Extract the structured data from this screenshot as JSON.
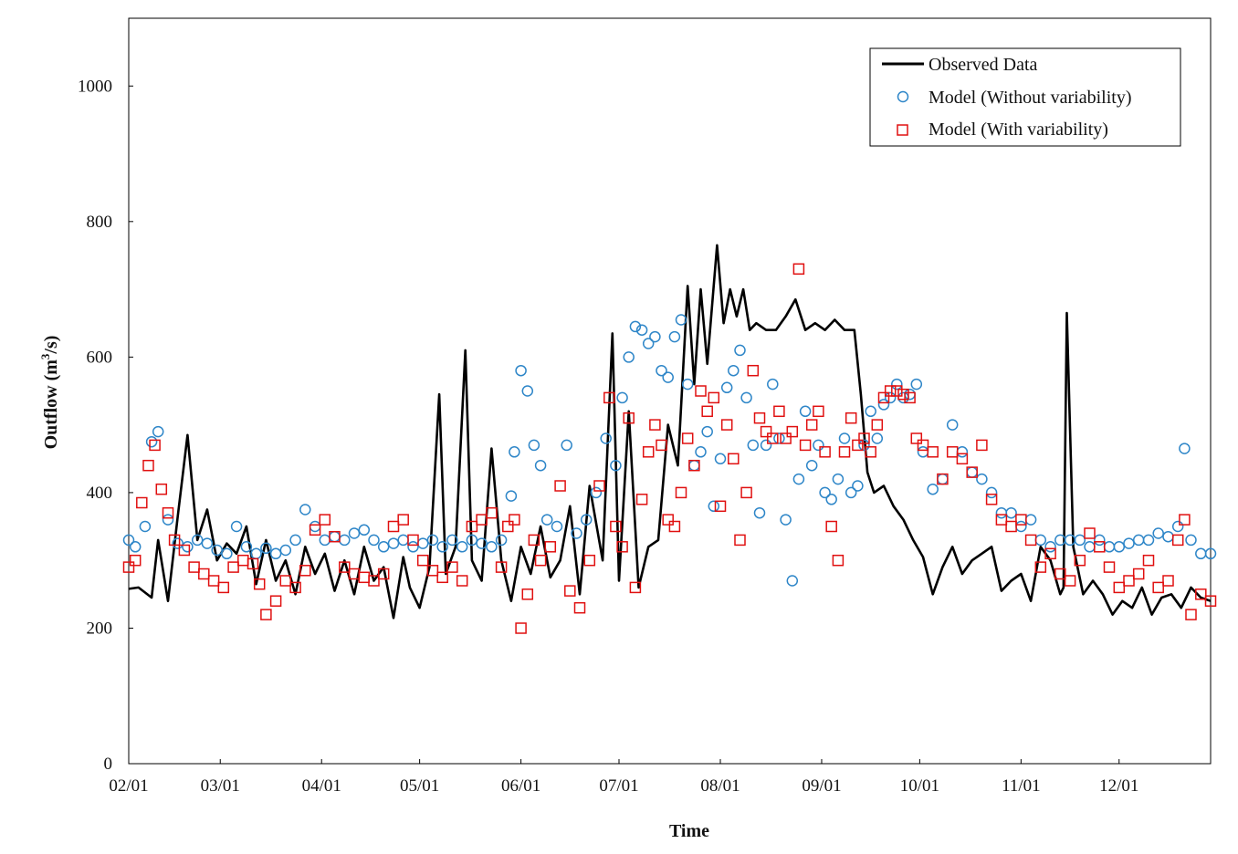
{
  "chart_data": {
    "type": "line",
    "xlabel": "Time",
    "ylabel": "Outflow (m³/s)",
    "ylabel_parts": {
      "main": "Outflow (m",
      "sup": "3",
      "tail": "/s)"
    },
    "ylim": [
      0,
      1100
    ],
    "yticks": [
      0,
      200,
      400,
      600,
      800,
      1000
    ],
    "xlim": [
      "02/01",
      "12/29"
    ],
    "xticks": [
      "02/01",
      "03/01",
      "04/01",
      "05/01",
      "06/01",
      "07/01",
      "08/01",
      "09/01",
      "10/01",
      "11/01",
      "12/01"
    ],
    "grid": false,
    "legend_position": "top-right",
    "colors": {
      "observed": "#000000",
      "without": "#2e86c8",
      "with": "#e01010"
    },
    "series": [
      {
        "name": "Observed Data",
        "style": "line",
        "x": [
          "02/01",
          "02/04",
          "02/08",
          "02/10",
          "02/13",
          "02/16",
          "02/19",
          "02/22",
          "02/25",
          "02/28",
          "03/03",
          "03/06",
          "03/09",
          "03/12",
          "03/15",
          "03/18",
          "03/21",
          "03/24",
          "03/27",
          "03/30",
          "04/02",
          "04/05",
          "04/08",
          "04/11",
          "04/14",
          "04/17",
          "04/20",
          "04/23",
          "04/26",
          "04/28",
          "05/01",
          "05/04",
          "05/07",
          "05/09",
          "05/12",
          "05/15",
          "05/17",
          "05/20",
          "05/23",
          "05/26",
          "05/29",
          "06/01",
          "06/04",
          "06/07",
          "06/10",
          "06/13",
          "06/16",
          "06/19",
          "06/22",
          "06/26",
          "06/29",
          "07/01",
          "07/04",
          "07/07",
          "07/10",
          "07/13",
          "07/16",
          "07/19",
          "07/22",
          "07/24",
          "07/26",
          "07/28",
          "07/31",
          "08/02",
          "08/04",
          "08/06",
          "08/08",
          "08/10",
          "08/12",
          "08/15",
          "08/18",
          "08/21",
          "08/24",
          "08/27",
          "08/30",
          "09/02",
          "09/05",
          "09/08",
          "09/11",
          "09/13",
          "09/15",
          "09/17",
          "09/20",
          "09/23",
          "09/26",
          "09/29",
          "10/02",
          "10/05",
          "10/08",
          "10/11",
          "10/14",
          "10/17",
          "10/20",
          "10/23",
          "10/26",
          "10/29",
          "11/01",
          "11/04",
          "11/07",
          "11/10",
          "11/13",
          "11/14",
          "11/15",
          "11/17",
          "11/20",
          "11/23",
          "11/26",
          "11/29",
          "12/02",
          "12/05",
          "12/08",
          "12/11",
          "12/14",
          "12/17",
          "12/20",
          "12/23",
          "12/26",
          "12/29"
        ],
        "y": [
          258,
          260,
          245,
          330,
          240,
          365,
          485,
          330,
          375,
          300,
          325,
          310,
          350,
          265,
          330,
          270,
          300,
          250,
          320,
          280,
          310,
          255,
          300,
          250,
          320,
          270,
          290,
          215,
          305,
          260,
          230,
          290,
          545,
          280,
          320,
          610,
          300,
          270,
          465,
          300,
          240,
          320,
          280,
          350,
          275,
          300,
          380,
          250,
          410,
          300,
          635,
          270,
          520,
          260,
          320,
          330,
          500,
          440,
          705,
          560,
          700,
          590,
          765,
          650,
          700,
          660,
          700,
          640,
          650,
          640,
          640,
          660,
          685,
          640,
          650,
          640,
          655,
          640,
          640,
          545,
          430,
          400,
          410,
          380,
          360,
          330,
          305,
          250,
          290,
          320,
          280,
          300,
          310,
          320,
          255,
          270,
          280,
          240,
          320,
          300,
          250,
          260,
          665,
          320,
          250,
          270,
          250,
          220,
          240,
          230,
          260,
          220,
          245,
          250,
          230,
          260,
          245,
          240
        ]
      },
      {
        "name": "Model (Without variability)",
        "style": "circle",
        "x": [
          "02/01",
          "02/03",
          "02/06",
          "02/08",
          "02/10",
          "02/13",
          "02/16",
          "02/19",
          "02/22",
          "02/25",
          "02/28",
          "03/03",
          "03/06",
          "03/09",
          "03/12",
          "03/15",
          "03/18",
          "03/21",
          "03/24",
          "03/27",
          "03/30",
          "04/02",
          "04/05",
          "04/08",
          "04/11",
          "04/14",
          "04/17",
          "04/20",
          "04/23",
          "04/26",
          "04/29",
          "05/02",
          "05/05",
          "05/08",
          "05/11",
          "05/14",
          "05/17",
          "05/20",
          "05/23",
          "05/26",
          "05/29",
          "05/30",
          "06/01",
          "06/03",
          "06/05",
          "06/07",
          "06/09",
          "06/12",
          "06/15",
          "06/18",
          "06/21",
          "06/24",
          "06/27",
          "06/30",
          "07/02",
          "07/04",
          "07/06",
          "07/08",
          "07/10",
          "07/12",
          "07/14",
          "07/16",
          "07/18",
          "07/20",
          "07/22",
          "07/24",
          "07/26",
          "07/28",
          "07/30",
          "08/01",
          "08/03",
          "08/05",
          "08/07",
          "08/09",
          "08/11",
          "08/13",
          "08/15",
          "08/17",
          "08/19",
          "08/21",
          "08/23",
          "08/25",
          "08/27",
          "08/29",
          "08/31",
          "09/02",
          "09/04",
          "09/06",
          "09/08",
          "09/10",
          "09/12",
          "09/14",
          "09/16",
          "09/18",
          "09/20",
          "09/22",
          "09/24",
          "09/26",
          "09/28",
          "09/30",
          "10/02",
          "10/05",
          "10/08",
          "10/11",
          "10/14",
          "10/17",
          "10/20",
          "10/23",
          "10/26",
          "10/29",
          "11/01",
          "11/04",
          "11/07",
          "11/10",
          "11/13",
          "11/16",
          "11/19",
          "11/22",
          "11/25",
          "11/28",
          "12/01",
          "12/04",
          "12/07",
          "12/10",
          "12/13",
          "12/16",
          "12/19",
          "12/21",
          "12/23",
          "12/26",
          "12/29"
        ],
        "y": [
          330,
          320,
          350,
          475,
          490,
          360,
          325,
          320,
          330,
          325,
          315,
          310,
          350,
          320,
          310,
          318,
          310,
          315,
          330,
          375,
          350,
          330,
          335,
          330,
          340,
          345,
          330,
          320,
          325,
          330,
          320,
          325,
          330,
          320,
          330,
          320,
          330,
          325,
          320,
          330,
          395,
          460,
          580,
          550,
          470,
          440,
          360,
          350,
          470,
          340,
          360,
          400,
          480,
          440,
          540,
          600,
          645,
          640,
          620,
          630,
          580,
          570,
          630,
          655,
          560,
          440,
          460,
          490,
          380,
          450,
          555,
          580,
          610,
          540,
          470,
          370,
          470,
          560,
          480,
          360,
          270,
          420,
          520,
          440,
          470,
          400,
          390,
          420,
          480,
          400,
          410,
          470,
          520,
          480,
          530,
          540,
          560,
          540,
          545,
          560,
          460,
          405,
          420,
          500,
          460,
          430,
          420,
          400,
          370,
          370,
          350,
          360,
          330,
          320,
          330,
          330,
          330,
          320,
          330,
          320,
          320,
          325,
          330,
          330,
          340,
          335,
          350,
          465,
          330,
          310,
          310
        ]
      },
      {
        "name": "Model (With variability)",
        "style": "square",
        "x": [
          "02/01",
          "02/03",
          "02/05",
          "02/07",
          "02/09",
          "02/11",
          "02/13",
          "02/15",
          "02/18",
          "02/21",
          "02/24",
          "02/27",
          "03/02",
          "03/05",
          "03/08",
          "03/11",
          "03/13",
          "03/15",
          "03/18",
          "03/21",
          "03/24",
          "03/27",
          "03/30",
          "04/02",
          "04/05",
          "04/08",
          "04/11",
          "04/14",
          "04/17",
          "04/20",
          "04/23",
          "04/26",
          "04/29",
          "05/02",
          "05/05",
          "05/08",
          "05/11",
          "05/14",
          "05/17",
          "05/20",
          "05/23",
          "05/26",
          "05/28",
          "05/30",
          "06/01",
          "06/03",
          "06/05",
          "06/07",
          "06/10",
          "06/13",
          "06/16",
          "06/19",
          "06/22",
          "06/25",
          "06/28",
          "06/30",
          "07/02",
          "07/04",
          "07/06",
          "07/08",
          "07/10",
          "07/12",
          "07/14",
          "07/16",
          "07/18",
          "07/20",
          "07/22",
          "07/24",
          "07/26",
          "07/28",
          "07/30",
          "08/01",
          "08/03",
          "08/05",
          "08/07",
          "08/09",
          "08/11",
          "08/13",
          "08/15",
          "08/17",
          "08/19",
          "08/21",
          "08/23",
          "08/25",
          "08/27",
          "08/29",
          "08/31",
          "09/02",
          "09/04",
          "09/06",
          "09/08",
          "09/10",
          "09/12",
          "09/14",
          "09/16",
          "09/18",
          "09/20",
          "09/22",
          "09/24",
          "09/26",
          "09/28",
          "09/30",
          "10/02",
          "10/05",
          "10/08",
          "10/11",
          "10/14",
          "10/17",
          "10/20",
          "10/23",
          "10/26",
          "10/29",
          "11/01",
          "11/04",
          "11/07",
          "11/10",
          "11/13",
          "11/16",
          "11/19",
          "11/22",
          "11/25",
          "11/28",
          "12/01",
          "12/04",
          "12/07",
          "12/10",
          "12/13",
          "12/16",
          "12/19",
          "12/21",
          "12/23",
          "12/26",
          "12/29"
        ],
        "y": [
          290,
          300,
          385,
          440,
          470,
          405,
          370,
          330,
          315,
          290,
          280,
          270,
          260,
          290,
          300,
          295,
          265,
          220,
          240,
          270,
          260,
          285,
          345,
          360,
          335,
          290,
          280,
          275,
          270,
          280,
          350,
          360,
          330,
          300,
          285,
          275,
          290,
          270,
          350,
          360,
          370,
          290,
          350,
          360,
          200,
          250,
          330,
          300,
          320,
          410,
          255,
          230,
          300,
          410,
          540,
          350,
          320,
          510,
          260,
          390,
          460,
          500,
          470,
          360,
          350,
          400,
          480,
          440,
          550,
          520,
          540,
          380,
          500,
          450,
          330,
          400,
          580,
          510,
          490,
          480,
          520,
          480,
          490,
          730,
          470,
          500,
          520,
          460,
          350,
          300,
          460,
          510,
          470,
          480,
          460,
          500,
          540,
          550,
          550,
          545,
          540,
          480,
          470,
          460,
          420,
          460,
          450,
          430,
          470,
          390,
          360,
          350,
          360,
          330,
          290,
          310,
          280,
          270,
          300,
          340,
          320,
          290,
          260,
          270,
          280,
          300,
          260,
          270,
          330,
          360,
          220,
          250,
          240
        ]
      }
    ]
  }
}
